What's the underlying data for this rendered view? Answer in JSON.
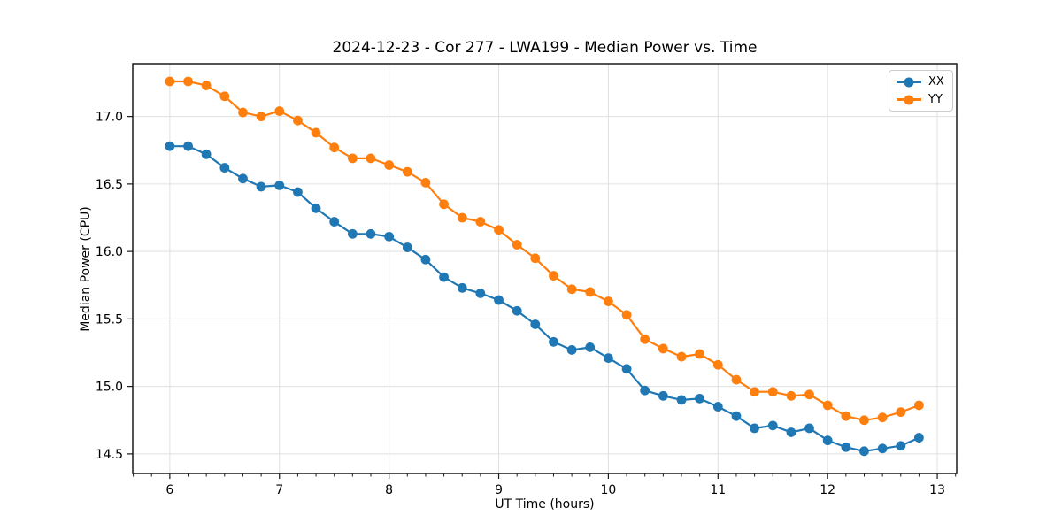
{
  "chart_data": {
    "type": "line",
    "title": "2024-12-23 - Cor 277 - LWA199 - Median Power vs. Time",
    "xlabel": "UT Time (hours)",
    "ylabel": "Median Power (CPU)",
    "xlim": [
      5.662,
      13.177
    ],
    "ylim": [
      14.355,
      17.391
    ],
    "xticks": [
      6,
      7,
      8,
      9,
      10,
      11,
      12,
      13
    ],
    "yticks": [
      14.5,
      15.0,
      15.5,
      16.0,
      16.5,
      17.0
    ],
    "minor_xtick_interval_hours": 0.1667,
    "grid": true,
    "grid_color": "#e0e0e0",
    "legend_position": "upper right",
    "x": [
      6.0,
      6.167,
      6.333,
      6.5,
      6.667,
      6.833,
      7.0,
      7.167,
      7.333,
      7.5,
      7.667,
      7.833,
      8.0,
      8.167,
      8.333,
      8.5,
      8.667,
      8.833,
      9.0,
      9.167,
      9.333,
      9.5,
      9.667,
      9.833,
      10.0,
      10.167,
      10.333,
      10.5,
      10.667,
      10.833,
      11.0,
      11.167,
      11.333,
      11.5,
      11.667,
      11.833,
      12.0,
      12.167,
      12.333,
      12.5,
      12.667,
      12.833
    ],
    "series": [
      {
        "name": "XX",
        "color": "#1f77b4",
        "values": [
          16.78,
          16.78,
          16.72,
          16.62,
          16.54,
          16.48,
          16.49,
          16.44,
          16.32,
          16.22,
          16.13,
          16.13,
          16.11,
          16.03,
          15.94,
          15.81,
          15.73,
          15.69,
          15.64,
          15.56,
          15.46,
          15.33,
          15.27,
          15.29,
          15.21,
          15.13,
          14.97,
          14.93,
          14.9,
          14.91,
          14.85,
          14.78,
          14.69,
          14.71,
          14.66,
          14.69,
          14.6,
          14.55,
          14.52,
          14.54,
          14.56,
          14.62
        ]
      },
      {
        "name": "YY",
        "color": "#ff7f0e",
        "values": [
          17.26,
          17.26,
          17.23,
          17.15,
          17.03,
          17.0,
          17.04,
          16.97,
          16.88,
          16.77,
          16.69,
          16.69,
          16.64,
          16.59,
          16.51,
          16.35,
          16.25,
          16.22,
          16.16,
          16.05,
          15.95,
          15.82,
          15.72,
          15.7,
          15.63,
          15.53,
          15.35,
          15.28,
          15.22,
          15.24,
          15.16,
          15.05,
          14.96,
          14.96,
          14.93,
          14.94,
          14.86,
          14.78,
          14.75,
          14.77,
          14.81,
          14.86
        ]
      }
    ]
  }
}
